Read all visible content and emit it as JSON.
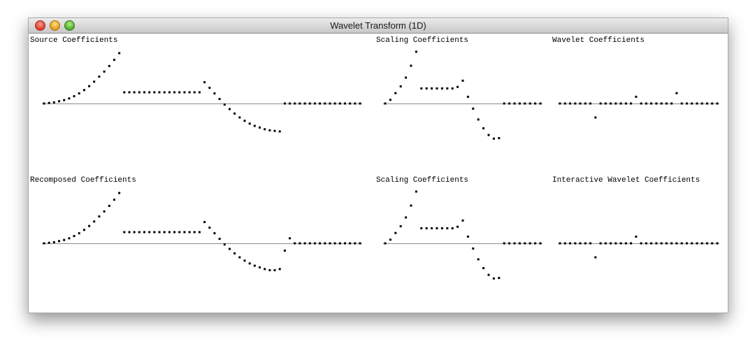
{
  "window": {
    "title": "Wavelet Transform (1D)"
  },
  "panels": [
    {
      "id": "source",
      "label": "Source Coefficients",
      "values": [
        0.0,
        0.01,
        0.02,
        0.04,
        0.06,
        0.09,
        0.13,
        0.18,
        0.24,
        0.31,
        0.39,
        0.48,
        0.57,
        0.67,
        0.78,
        0.9,
        0.2,
        0.2,
        0.2,
        0.2,
        0.2,
        0.2,
        0.2,
        0.2,
        0.2,
        0.2,
        0.2,
        0.2,
        0.2,
        0.2,
        0.2,
        0.2,
        0.38,
        0.28,
        0.18,
        0.08,
        -0.02,
        -0.1,
        -0.18,
        -0.25,
        -0.31,
        -0.36,
        -0.4,
        -0.43,
        -0.46,
        -0.48,
        -0.49,
        -0.5,
        0.0,
        0.0,
        0.0,
        0.0,
        0.0,
        0.0,
        0.0,
        0.0,
        0.0,
        0.0,
        0.0,
        0.0,
        0.0,
        0.0,
        0.0,
        0.0
      ]
    },
    {
      "id": "scaling-top",
      "label": "Scaling Coefficients",
      "values": [
        0.0,
        0.07,
        0.2,
        0.33,
        0.5,
        0.73,
        1.0,
        0.29,
        0.29,
        0.29,
        0.29,
        0.29,
        0.29,
        0.29,
        0.32,
        0.44,
        0.13,
        -0.1,
        -0.31,
        -0.48,
        -0.61,
        -0.68,
        -0.67,
        0.0,
        0.0,
        0.0,
        0.0,
        0.0,
        0.0,
        0.0,
        0.0
      ]
    },
    {
      "id": "wavelet-top",
      "label": "Wavelet Coefficients",
      "values": [
        0.0,
        0.0,
        0.0,
        0.0,
        0.0,
        0.0,
        0.0,
        -0.27,
        0.0,
        0.0,
        0.0,
        0.0,
        0.0,
        0.0,
        0.0,
        0.13,
        0.0,
        0.0,
        0.0,
        0.0,
        0.0,
        0.0,
        0.0,
        0.2,
        0.0,
        0.0,
        0.0,
        0.0,
        0.0,
        0.0,
        0.0,
        0.0
      ]
    },
    {
      "id": "recomposed",
      "label": "Recomposed Coefficients",
      "values": [
        0.0,
        0.01,
        0.02,
        0.04,
        0.06,
        0.09,
        0.13,
        0.18,
        0.24,
        0.31,
        0.39,
        0.48,
        0.57,
        0.67,
        0.78,
        0.9,
        0.2,
        0.2,
        0.2,
        0.2,
        0.2,
        0.2,
        0.2,
        0.2,
        0.2,
        0.2,
        0.2,
        0.2,
        0.2,
        0.2,
        0.2,
        0.2,
        0.38,
        0.28,
        0.18,
        0.08,
        -0.02,
        -0.1,
        -0.18,
        -0.25,
        -0.31,
        -0.36,
        -0.4,
        -0.43,
        -0.46,
        -0.48,
        -0.48,
        -0.46,
        -0.13,
        0.09,
        0.0,
        0.0,
        0.0,
        0.0,
        0.0,
        0.0,
        0.0,
        0.0,
        0.0,
        0.0,
        0.0,
        0.0,
        0.0,
        0.0
      ]
    },
    {
      "id": "scaling-bottom",
      "label": "Scaling Coefficients",
      "values": [
        0.0,
        0.07,
        0.2,
        0.33,
        0.5,
        0.73,
        1.0,
        0.29,
        0.29,
        0.29,
        0.29,
        0.29,
        0.29,
        0.29,
        0.32,
        0.44,
        0.13,
        -0.1,
        -0.31,
        -0.48,
        -0.61,
        -0.68,
        -0.67,
        0.0,
        0.0,
        0.0,
        0.0,
        0.0,
        0.0,
        0.0,
        0.0
      ]
    },
    {
      "id": "wavelet-interactive",
      "label": "Interactive Wavelet Coefficients",
      "values": [
        0.0,
        0.0,
        0.0,
        0.0,
        0.0,
        0.0,
        0.0,
        -0.27,
        0.0,
        0.0,
        0.0,
        0.0,
        0.0,
        0.0,
        0.0,
        0.13,
        0.0,
        0.0,
        0.0,
        0.0,
        0.0,
        0.0,
        0.0,
        0.0,
        0.0,
        0.0,
        0.0,
        0.0,
        0.0,
        0.0,
        0.0,
        0.0
      ]
    }
  ],
  "colors": {
    "point": "#000000",
    "axis": "#8c8c8c"
  }
}
